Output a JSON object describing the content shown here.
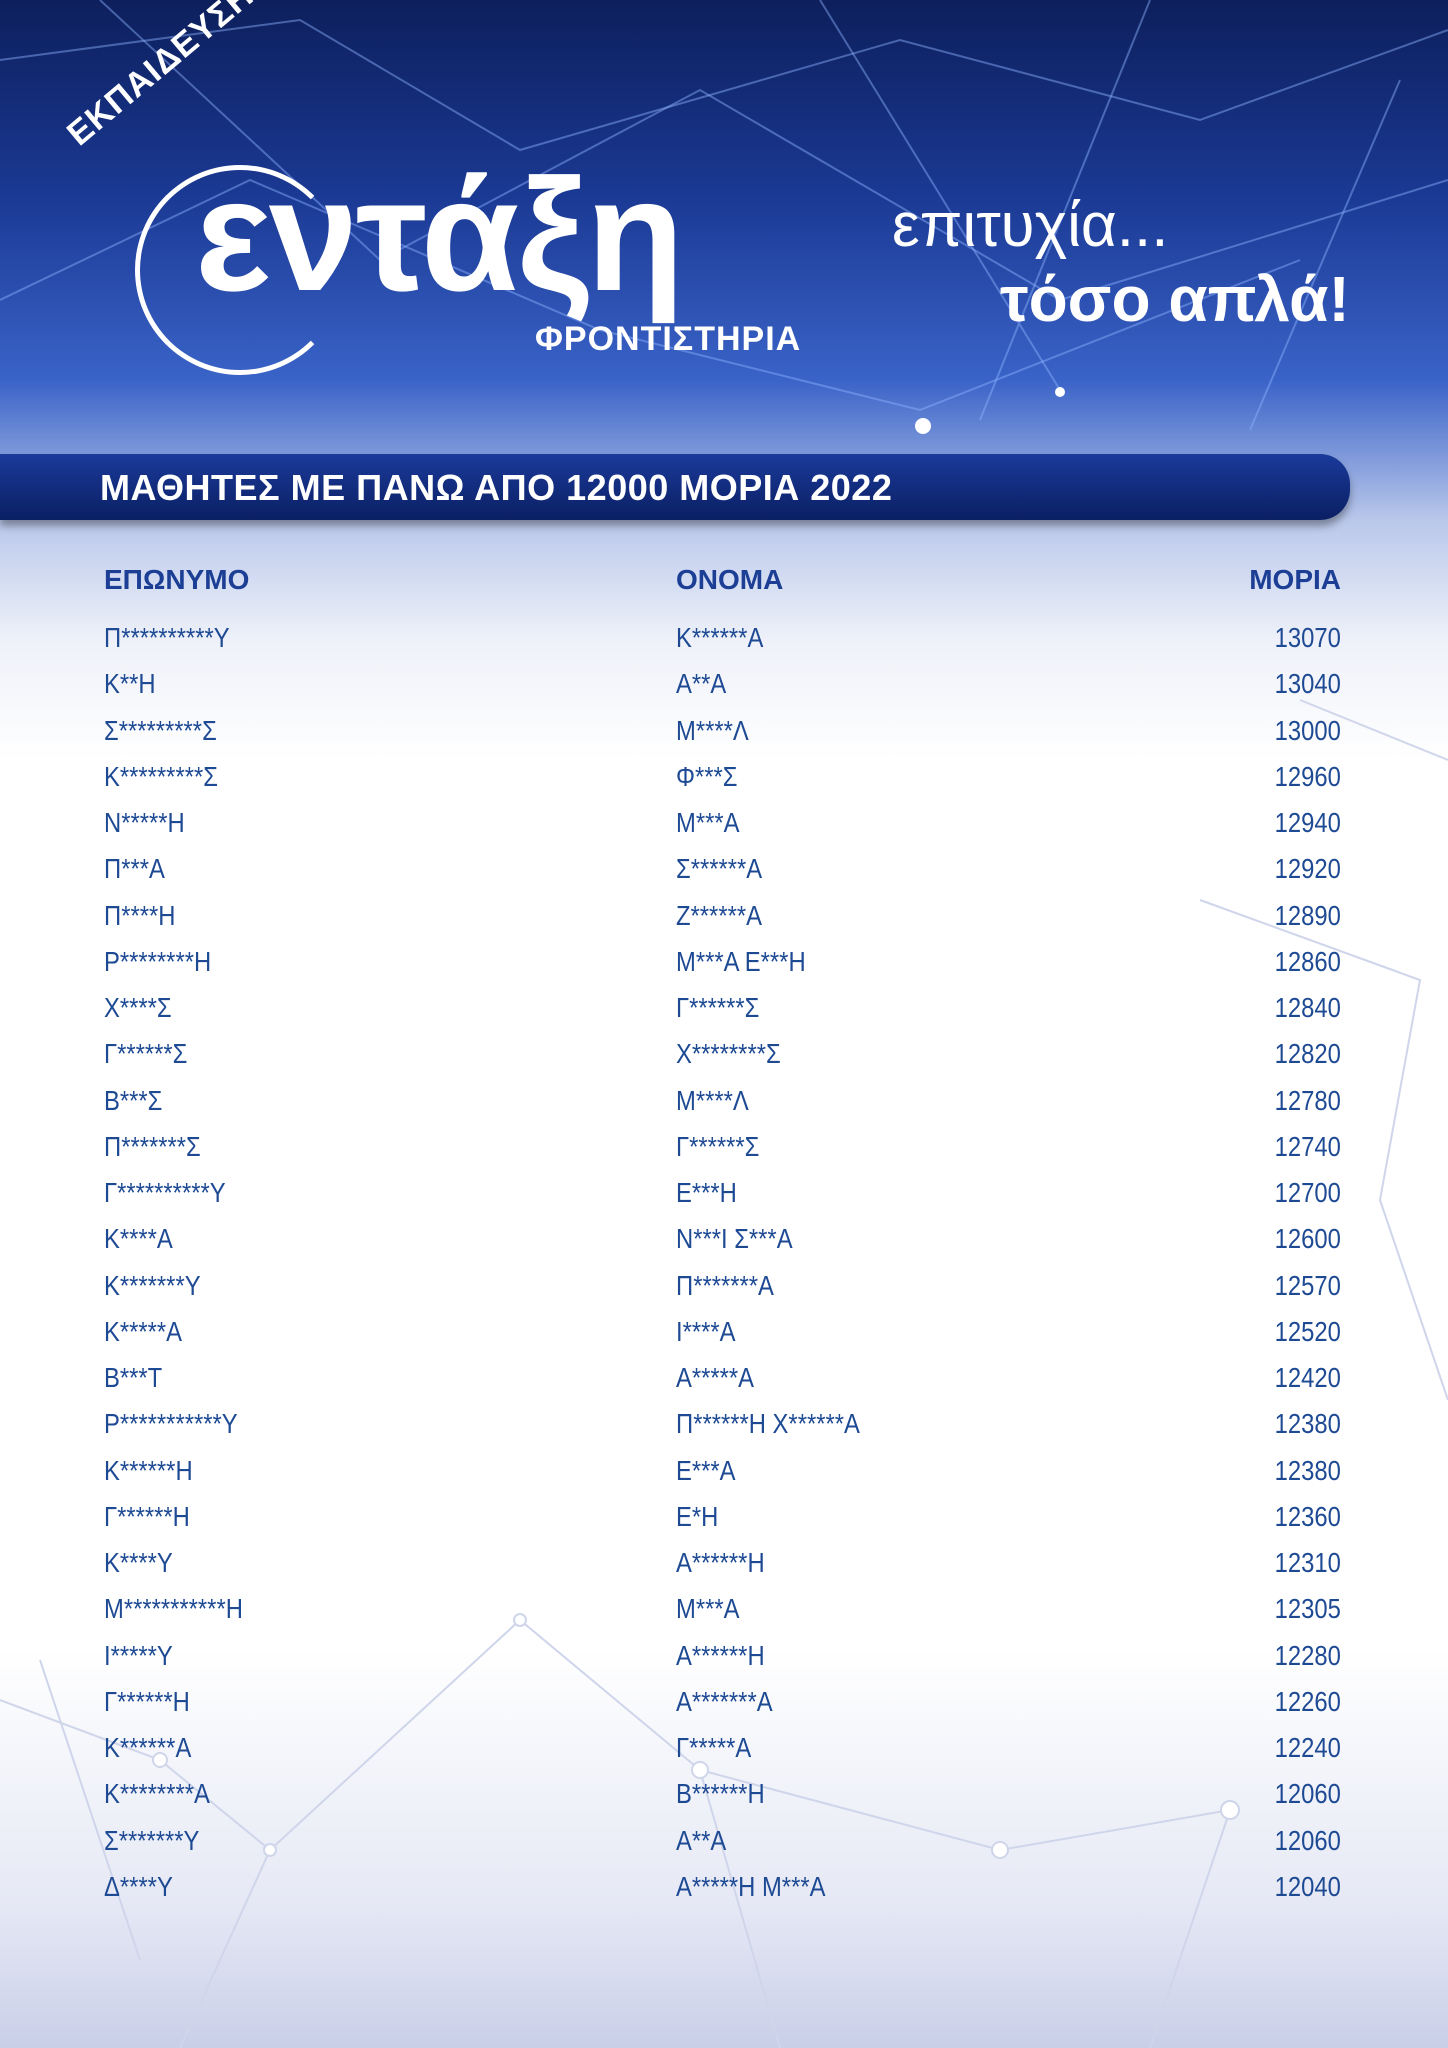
{
  "logo": {
    "arc_text": "ΕΚΠΑΙΔΕΥΣΗ",
    "main_text": "εντάξη",
    "sub_text": "ΦΡΟΝΤΙΣΤΗΡΙΑ"
  },
  "slogan": {
    "line1": "επιτυχία...",
    "line2": "τόσο απλά!"
  },
  "banner": {
    "title": "ΜΑΘΗΤΕΣ ΜΕ ΠΑΝΩ ΑΠΟ 12000 ΜΟΡΙΑ 2022"
  },
  "table": {
    "headers": [
      "ΕΠΩΝΥΜΟ",
      "ΟΝΟΜΑ",
      "ΜΟΡΙΑ"
    ],
    "rows": [
      [
        "Π**********Υ",
        "Κ******Α",
        "13070"
      ],
      [
        "Κ**Η",
        "Α**Α",
        "13040"
      ],
      [
        "Σ*********Σ",
        "Μ****Λ",
        "13000"
      ],
      [
        "Κ*********Σ",
        "Φ***Σ",
        "12960"
      ],
      [
        "Ν*****Η",
        "Μ***Α",
        "12940"
      ],
      [
        "Π***Α",
        "Σ******Α",
        "12920"
      ],
      [
        "Π****Η",
        "Ζ******Α",
        "12890"
      ],
      [
        "Ρ********Η",
        "Μ***Α Ε***Η",
        "12860"
      ],
      [
        "Χ****Σ",
        "Γ******Σ",
        "12840"
      ],
      [
        "Γ******Σ",
        "Χ********Σ",
        "12820"
      ],
      [
        "Β***Σ",
        "Μ****Λ",
        "12780"
      ],
      [
        "Π*******Σ",
        "Γ******Σ",
        "12740"
      ],
      [
        "Γ**********Υ",
        "Ε***Η",
        "12700"
      ],
      [
        "Κ****Α",
        "Ν***Ι Σ***Α",
        "12600"
      ],
      [
        "Κ*******Υ",
        "Π*******Α",
        "12570"
      ],
      [
        "Κ*****Α",
        "Ι****Α",
        "12520"
      ],
      [
        "Β***Τ",
        "Α*****Α",
        "12420"
      ],
      [
        "Ρ***********Υ",
        "Π******Η Χ******Α",
        "12380"
      ],
      [
        "Κ******Η",
        "Ε***Α",
        "12380"
      ],
      [
        "Γ******Η",
        "Ε*Η",
        "12360"
      ],
      [
        "Κ****Υ",
        "Α******Η",
        "12310"
      ],
      [
        "Μ***********Η",
        "Μ***Α",
        "12305"
      ],
      [
        "Ι*****Υ",
        "Α******Η",
        "12280"
      ],
      [
        "Γ******Η",
        "Α*******Α",
        "12260"
      ],
      [
        "Κ******Α",
        "Γ*****Α",
        "12240"
      ],
      [
        "Κ********Α",
        "Β******Η",
        "12060"
      ],
      [
        "Σ*******Υ",
        "Α**Α",
        "12060"
      ],
      [
        "Δ****Υ",
        "Α*****Η Μ***Α",
        "12040"
      ]
    ]
  }
}
